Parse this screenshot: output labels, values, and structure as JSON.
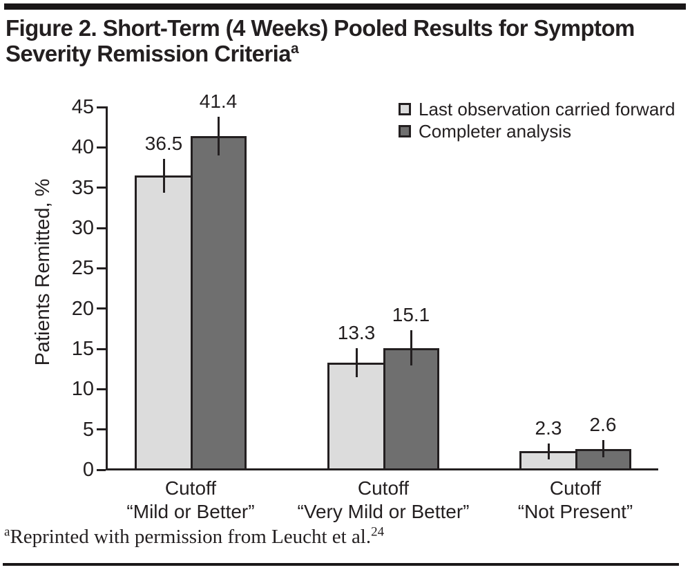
{
  "figure": {
    "title_line1": "Figure 2. Short-Term (4 Weeks) Pooled Results for Symptom",
    "title_line2": "Severity Remission Criteria",
    "title_superscript": "a",
    "footnote_superscript": "a",
    "footnote_text": "Reprinted with permission from Leucht et al.",
    "footnote_ref_superscript": "24"
  },
  "colors": {
    "text": "#231f20",
    "axis": "#231f20",
    "locf_fill": "#dcdcdc",
    "completer_fill": "#6f6f6f"
  },
  "chart_data": {
    "type": "bar",
    "title": "",
    "xlabel": "",
    "ylabel": "Patients Remitted, %",
    "ylim": [
      0,
      45
    ],
    "yticks": [
      0,
      5,
      10,
      15,
      20,
      25,
      30,
      35,
      40,
      45
    ],
    "grid": false,
    "legend_position": "top-right",
    "error_bars": true,
    "categories": [
      {
        "line1": "Cutoff",
        "line2": "“Mild or Better”"
      },
      {
        "line1": "Cutoff",
        "line2": "“Very Mild or Better”"
      },
      {
        "line1": "Cutoff",
        "line2": "“Not Present”"
      }
    ],
    "series": [
      {
        "name": "Last observation carried forward",
        "fill": "#dcdcdc",
        "values": [
          36.5,
          13.3,
          2.3
        ],
        "errors": [
          2.1,
          1.8,
          1.0
        ]
      },
      {
        "name": "Completer analysis",
        "fill": "#6f6f6f",
        "values": [
          41.4,
          15.1,
          2.6
        ],
        "errors": [
          2.4,
          2.2,
          1.1
        ]
      }
    ]
  }
}
